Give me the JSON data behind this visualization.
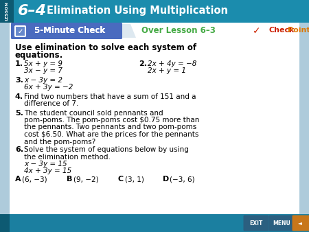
{
  "title_bar_color": "#1b8cad",
  "title_bar_dark": "#156b87",
  "lesson_strip_color": "#0d5a72",
  "bg_color": "#aecbdb",
  "white_content": "#ffffff",
  "five_min_bg": "#4a6bbf",
  "five_min_text": "5-Minute Check",
  "over_lesson_text": "Over Lesson 6–3",
  "over_lesson_color": "#44aa44",
  "checkpoint_check_color": "#cc2200",
  "checkpoint_word_color": "#dd6600",
  "header_bold": "Use elimination to solve each system of",
  "header_bold2": "equations.",
  "bottom_bar_color": "#1b7fa0",
  "title_lesson_num": "6–4",
  "title_lesson_title": "Elimination Using Multiplication",
  "font_size_body": 7.5,
  "font_size_header": 9.0,
  "font_size_title": 10.5
}
